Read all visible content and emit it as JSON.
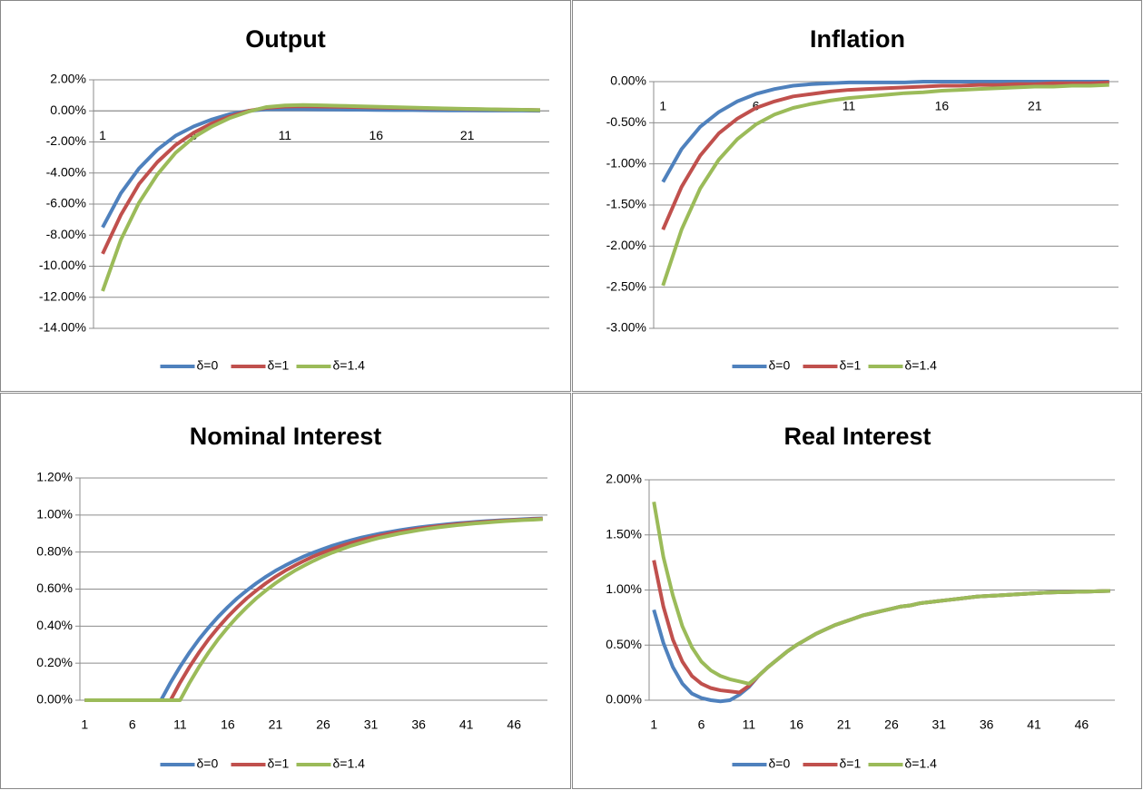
{
  "chart_data": [
    {
      "type": "line",
      "title": "Output",
      "categories": [
        "1",
        null,
        null,
        null,
        null,
        "6",
        null,
        null,
        null,
        null,
        "11",
        null,
        null,
        null,
        null,
        "16",
        null,
        null,
        null,
        null,
        "21",
        null,
        null,
        null,
        null
      ],
      "ylim": [
        -14,
        2
      ],
      "yticks": [
        {
          "value": -14,
          "label": "-14.00%"
        },
        {
          "value": -12,
          "label": "-12.00%"
        },
        {
          "value": -10,
          "label": "-10.00%"
        },
        {
          "value": -8,
          "label": "-8.00%"
        },
        {
          "value": -6,
          "label": "-6.00%"
        },
        {
          "value": -4,
          "label": "-4.00%"
        },
        {
          "value": -2,
          "label": "-2.00%"
        },
        {
          "value": 0,
          "label": "0.00%"
        },
        {
          "value": 2,
          "label": "2.00%"
        }
      ],
      "grid": true,
      "legend": "bottom",
      "series": [
        {
          "name": "δ=0",
          "color": "#4f81bd",
          "values": [
            -7.5,
            -5.3,
            -3.7,
            -2.5,
            -1.6,
            -1.0,
            -0.55,
            -0.2,
            0.0,
            0.1,
            0.1,
            0.1,
            0.09,
            0.08,
            0.07,
            0.06,
            0.05,
            0.05,
            0.04,
            0.03,
            0.03,
            0.02,
            0.02,
            0.02,
            0.01
          ]
        },
        {
          "name": "δ=1",
          "color": "#c0504d",
          "values": [
            -9.2,
            -6.7,
            -4.7,
            -3.3,
            -2.2,
            -1.4,
            -0.8,
            -0.35,
            0.0,
            0.2,
            0.28,
            0.3,
            0.28,
            0.26,
            0.24,
            0.22,
            0.2,
            0.18,
            0.16,
            0.14,
            0.12,
            0.1,
            0.08,
            0.07,
            0.05
          ]
        },
        {
          "name": "δ=1.4",
          "color": "#9bbb59",
          "values": [
            -11.6,
            -8.3,
            -5.9,
            -4.1,
            -2.7,
            -1.7,
            -1.0,
            -0.45,
            -0.05,
            0.25,
            0.35,
            0.38,
            0.36,
            0.33,
            0.3,
            0.27,
            0.24,
            0.21,
            0.18,
            0.15,
            0.13,
            0.11,
            0.09,
            0.07,
            0.05
          ]
        }
      ]
    },
    {
      "type": "line",
      "title": "Inflation",
      "categories": [
        "1",
        null,
        null,
        null,
        null,
        "6",
        null,
        null,
        null,
        null,
        "11",
        null,
        null,
        null,
        null,
        "16",
        null,
        null,
        null,
        null,
        "21",
        null,
        null,
        null,
        null
      ],
      "ylim": [
        -3,
        0
      ],
      "yticks": [
        {
          "value": -3,
          "label": "-3.00%"
        },
        {
          "value": -2.5,
          "label": "-2.50%"
        },
        {
          "value": -2,
          "label": "-2.00%"
        },
        {
          "value": -1.5,
          "label": "-1.50%"
        },
        {
          "value": -1,
          "label": "-1.00%"
        },
        {
          "value": -0.5,
          "label": "-0.50%"
        },
        {
          "value": 0,
          "label": "0.00%"
        }
      ],
      "grid": true,
      "legend": "bottom",
      "series": [
        {
          "name": "δ=0",
          "color": "#4f81bd",
          "values": [
            -1.22,
            -0.82,
            -0.55,
            -0.37,
            -0.24,
            -0.15,
            -0.09,
            -0.05,
            -0.03,
            -0.02,
            -0.01,
            -0.01,
            -0.01,
            -0.01,
            0,
            0,
            0,
            0,
            0,
            0,
            0,
            0,
            0,
            0,
            0
          ]
        },
        {
          "name": "δ=1",
          "color": "#c0504d",
          "values": [
            -1.8,
            -1.28,
            -0.9,
            -0.63,
            -0.45,
            -0.32,
            -0.24,
            -0.18,
            -0.15,
            -0.12,
            -0.1,
            -0.09,
            -0.08,
            -0.07,
            -0.06,
            -0.05,
            -0.05,
            -0.04,
            -0.04,
            -0.03,
            -0.03,
            -0.02,
            -0.02,
            -0.02,
            -0.01
          ]
        },
        {
          "name": "δ=1.4",
          "color": "#9bbb59",
          "values": [
            -2.48,
            -1.8,
            -1.3,
            -0.95,
            -0.7,
            -0.52,
            -0.4,
            -0.32,
            -0.27,
            -0.23,
            -0.2,
            -0.18,
            -0.16,
            -0.14,
            -0.13,
            -0.11,
            -0.1,
            -0.09,
            -0.08,
            -0.07,
            -0.06,
            -0.06,
            -0.05,
            -0.05,
            -0.04
          ]
        }
      ]
    },
    {
      "type": "line",
      "title": "Nominal Interest",
      "categories": [
        "1",
        null,
        null,
        null,
        null,
        "6",
        null,
        null,
        null,
        null,
        "11",
        null,
        null,
        null,
        null,
        "16",
        null,
        null,
        null,
        null,
        "21",
        null,
        null,
        null,
        null,
        "26",
        null,
        null,
        null,
        null,
        "31",
        null,
        null,
        null,
        null,
        "36",
        null,
        null,
        null,
        null,
        "41",
        null,
        null,
        null,
        null,
        "46",
        null,
        null,
        null
      ],
      "ylim": [
        0,
        1.2
      ],
      "yticks": [
        {
          "value": 0,
          "label": "0.00%"
        },
        {
          "value": 0.2,
          "label": "0.20%"
        },
        {
          "value": 0.4,
          "label": "0.40%"
        },
        {
          "value": 0.6,
          "label": "0.60%"
        },
        {
          "value": 0.8,
          "label": "0.80%"
        },
        {
          "value": 1,
          "label": "1.00%"
        },
        {
          "value": 1.2,
          "label": "1.20%"
        }
      ],
      "grid": true,
      "legend": "bottom",
      "series": [
        {
          "name": "δ=0",
          "color": "#4f81bd",
          "values": [
            0,
            0,
            0,
            0,
            0,
            0,
            0,
            0,
            0,
            0.095,
            0.181,
            0.259,
            0.33,
            0.393,
            0.451,
            0.503,
            0.551,
            0.593,
            0.632,
            0.667,
            0.699,
            0.727,
            0.753,
            0.777,
            0.798,
            0.817,
            0.835,
            0.85,
            0.865,
            0.878,
            0.889,
            0.9,
            0.909,
            0.918,
            0.926,
            0.933,
            0.939,
            0.945,
            0.95,
            0.955,
            0.959,
            0.963,
            0.967,
            0.97,
            0.973,
            0.975,
            0.978,
            0.98,
            0.982
          ]
        },
        {
          "name": "δ=1",
          "color": "#c0504d",
          "values": [
            0,
            0,
            0,
            0,
            0,
            0,
            0,
            0,
            0,
            0,
            0.095,
            0.181,
            0.259,
            0.33,
            0.393,
            0.451,
            0.503,
            0.551,
            0.593,
            0.632,
            0.667,
            0.699,
            0.727,
            0.753,
            0.777,
            0.798,
            0.817,
            0.835,
            0.85,
            0.865,
            0.878,
            0.889,
            0.9,
            0.909,
            0.918,
            0.926,
            0.933,
            0.939,
            0.945,
            0.95,
            0.955,
            0.959,
            0.963,
            0.967,
            0.97,
            0.973,
            0.975,
            0.978,
            0.98
          ]
        },
        {
          "name": "δ=1.4",
          "color": "#9bbb59",
          "values": [
            0,
            0,
            0,
            0,
            0,
            0,
            0,
            0,
            0,
            0,
            0,
            0.095,
            0.181,
            0.259,
            0.33,
            0.393,
            0.451,
            0.503,
            0.551,
            0.593,
            0.632,
            0.667,
            0.699,
            0.727,
            0.753,
            0.777,
            0.798,
            0.817,
            0.835,
            0.85,
            0.865,
            0.878,
            0.889,
            0.9,
            0.909,
            0.918,
            0.926,
            0.933,
            0.939,
            0.945,
            0.95,
            0.955,
            0.959,
            0.963,
            0.967,
            0.97,
            0.973,
            0.975,
            0.978
          ]
        }
      ]
    },
    {
      "type": "line",
      "title": "Real Interest",
      "categories": [
        "1",
        null,
        null,
        null,
        null,
        "6",
        null,
        null,
        null,
        null,
        "11",
        null,
        null,
        null,
        null,
        "16",
        null,
        null,
        null,
        null,
        "21",
        null,
        null,
        null,
        null,
        "26",
        null,
        null,
        null,
        null,
        "31",
        null,
        null,
        null,
        null,
        "36",
        null,
        null,
        null,
        null,
        "41",
        null,
        null,
        null,
        null,
        "46",
        null,
        null,
        null
      ],
      "ylim": [
        0,
        2
      ],
      "yticks": [
        {
          "value": 0,
          "label": "0.00%"
        },
        {
          "value": 0.5,
          "label": "0.50%"
        },
        {
          "value": 1,
          "label": "1.00%"
        },
        {
          "value": 1.5,
          "label": "1.50%"
        },
        {
          "value": 2,
          "label": "2.00%"
        }
      ],
      "grid": true,
      "legend": "bottom",
      "series": [
        {
          "name": "δ=0",
          "color": "#4f81bd",
          "values": [
            0.82,
            0.52,
            0.3,
            0.15,
            0.06,
            0.02,
            0.0,
            -0.01,
            0.0,
            0.05,
            0.12,
            0.22,
            0.3,
            0.37,
            0.44,
            0.5,
            0.55,
            0.6,
            0.64,
            0.68,
            0.71,
            0.74,
            0.77,
            0.79,
            0.81,
            0.83,
            0.85,
            0.86,
            0.88,
            0.89,
            0.9,
            0.91,
            0.92,
            0.93,
            0.94,
            0.945,
            0.95,
            0.955,
            0.96,
            0.965,
            0.97,
            0.975,
            0.978,
            0.98,
            0.983,
            0.985,
            0.987,
            0.99,
            0.992
          ]
        },
        {
          "name": "δ=1",
          "color": "#c0504d",
          "values": [
            1.27,
            0.85,
            0.55,
            0.35,
            0.22,
            0.15,
            0.11,
            0.09,
            0.08,
            0.07,
            0.13,
            0.22,
            0.3,
            0.37,
            0.44,
            0.5,
            0.55,
            0.6,
            0.64,
            0.68,
            0.71,
            0.74,
            0.77,
            0.79,
            0.81,
            0.83,
            0.85,
            0.86,
            0.88,
            0.89,
            0.9,
            0.91,
            0.92,
            0.93,
            0.94,
            0.945,
            0.95,
            0.955,
            0.96,
            0.965,
            0.97,
            0.975,
            0.978,
            0.98,
            0.983,
            0.985,
            0.987,
            0.99,
            0.992
          ]
        },
        {
          "name": "δ=1.4",
          "color": "#9bbb59",
          "values": [
            1.8,
            1.3,
            0.95,
            0.67,
            0.48,
            0.35,
            0.27,
            0.22,
            0.19,
            0.17,
            0.15,
            0.22,
            0.3,
            0.37,
            0.44,
            0.5,
            0.55,
            0.6,
            0.64,
            0.68,
            0.71,
            0.74,
            0.77,
            0.79,
            0.81,
            0.83,
            0.85,
            0.86,
            0.88,
            0.89,
            0.9,
            0.91,
            0.92,
            0.93,
            0.94,
            0.945,
            0.95,
            0.955,
            0.96,
            0.965,
            0.97,
            0.975,
            0.978,
            0.98,
            0.983,
            0.985,
            0.987,
            0.99,
            0.992
          ]
        }
      ]
    }
  ]
}
